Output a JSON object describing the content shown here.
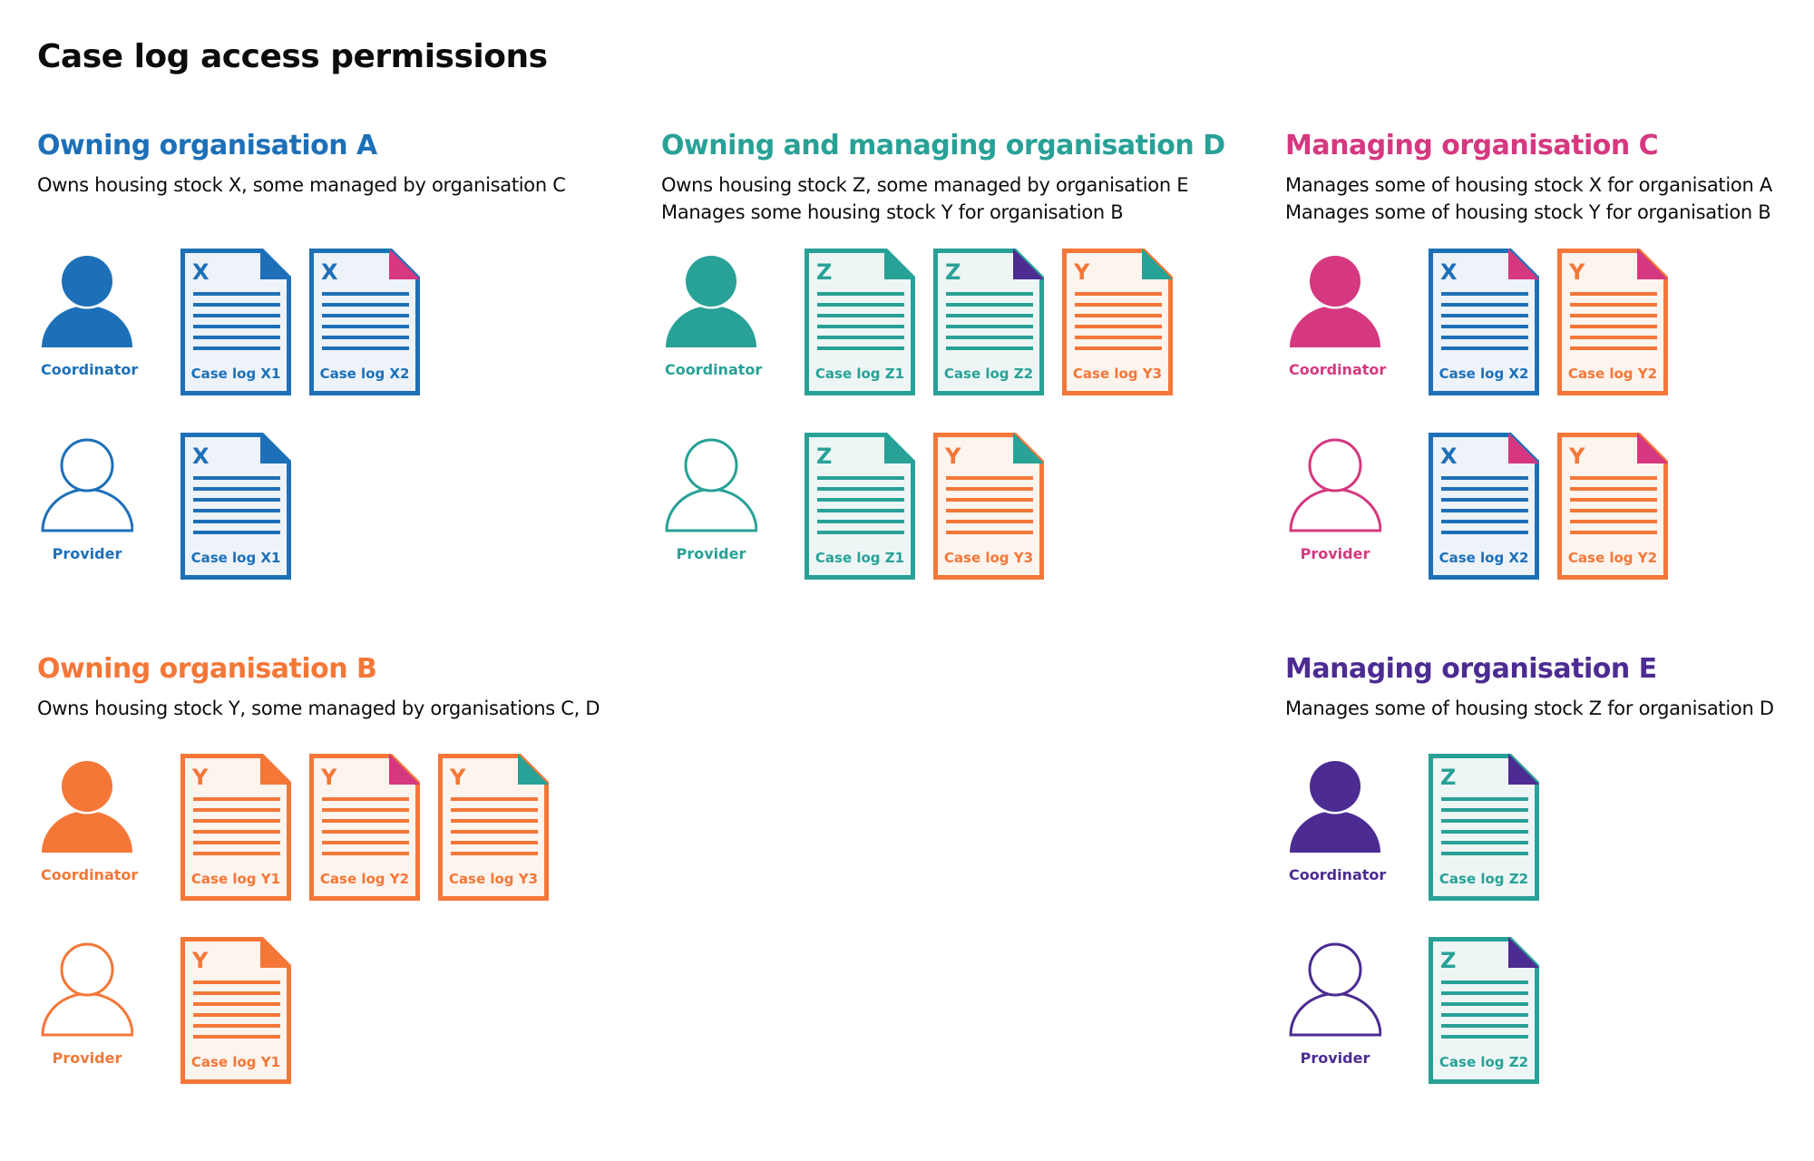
{
  "title": "Case log access permissions",
  "colors": {
    "A": "#1d70b8",
    "D": "#28a197",
    "C": "#d53880",
    "B": "#f47738",
    "E": "#4c2c92"
  },
  "sections": [
    {
      "id": "A",
      "position": "top",
      "heading": "Owning organisation A",
      "color": "#1d70b8",
      "description": [
        "Owns housing stock X, some managed by organisation C"
      ],
      "rows": [
        {
          "role": "Coordinator",
          "filled": true,
          "docs": [
            {
              "letter": "X",
              "label": "Case log X1",
              "color": "#1d70b8",
              "corner": "#1d70b8"
            },
            {
              "letter": "X",
              "label": "Case log X2",
              "color": "#1d70b8",
              "corner": "#d53880"
            }
          ]
        },
        {
          "role": "Provider",
          "filled": false,
          "docs": [
            {
              "letter": "X",
              "label": "Case log X1",
              "color": "#1d70b8",
              "corner": "#1d70b8"
            }
          ]
        }
      ]
    },
    {
      "id": "D",
      "position": "top",
      "heading": "Owning and managing organisation D",
      "color": "#28a197",
      "description": [
        "Owns housing stock Z, some managed by organisation E",
        "Manages some housing stock Y for organisation B"
      ],
      "rows": [
        {
          "role": "Coordinator",
          "filled": true,
          "docs": [
            {
              "letter": "Z",
              "label": "Case log Z1",
              "color": "#28a197",
              "corner": "#28a197"
            },
            {
              "letter": "Z",
              "label": "Case log Z2",
              "color": "#28a197",
              "corner": "#4c2c92"
            },
            {
              "letter": "Y",
              "label": "Case log Y3",
              "color": "#f47738",
              "corner": "#28a197"
            }
          ]
        },
        {
          "role": "Provider",
          "filled": false,
          "docs": [
            {
              "letter": "Z",
              "label": "Case log Z1",
              "color": "#28a197",
              "corner": "#28a197"
            },
            {
              "letter": "Y",
              "label": "Case log Y3",
              "color": "#f47738",
              "corner": "#28a197"
            }
          ]
        }
      ]
    },
    {
      "id": "C",
      "position": "top",
      "heading": "Managing organisation C",
      "color": "#d53880",
      "description": [
        "Manages some of housing stock X for organisation A",
        "Manages some of housing stock Y for organisation B"
      ],
      "rows": [
        {
          "role": "Coordinator",
          "filled": true,
          "docs": [
            {
              "letter": "X",
              "label": "Case log X2",
              "color": "#1d70b8",
              "corner": "#d53880"
            },
            {
              "letter": "Y",
              "label": "Case log Y2",
              "color": "#f47738",
              "corner": "#d53880"
            }
          ]
        },
        {
          "role": "Provider",
          "filled": false,
          "docs": [
            {
              "letter": "X",
              "label": "Case log X2",
              "color": "#1d70b8",
              "corner": "#d53880"
            },
            {
              "letter": "Y",
              "label": "Case log Y2",
              "color": "#f47738",
              "corner": "#d53880"
            }
          ]
        }
      ]
    },
    {
      "id": "B",
      "position": "bottom",
      "heading": "Owning organisation B",
      "color": "#f47738",
      "description": [
        "Owns housing stock Y, some managed by organisations C, D"
      ],
      "rows": [
        {
          "role": "Coordinator",
          "filled": true,
          "docs": [
            {
              "letter": "Y",
              "label": "Case log Y1",
              "color": "#f47738",
              "corner": "#f47738"
            },
            {
              "letter": "Y",
              "label": "Case log Y2",
              "color": "#f47738",
              "corner": "#d53880"
            },
            {
              "letter": "Y",
              "label": "Case log Y3",
              "color": "#f47738",
              "corner": "#28a197"
            }
          ]
        },
        {
          "role": "Provider",
          "filled": false,
          "docs": [
            {
              "letter": "Y",
              "label": "Case log Y1",
              "color": "#f47738",
              "corner": "#f47738"
            }
          ]
        }
      ]
    },
    {
      "id": "E",
      "position": "bottom",
      "heading": "Managing organisation E",
      "color": "#4c2c92",
      "description": [
        "Manages some of housing stock Z for organisation D"
      ],
      "rows": [
        {
          "role": "Coordinator",
          "filled": true,
          "docs": [
            {
              "letter": "Z",
              "label": "Case log Z2",
              "color": "#28a197",
              "corner": "#4c2c92"
            }
          ]
        },
        {
          "role": "Provider",
          "filled": false,
          "docs": [
            {
              "letter": "Z",
              "label": "Case log Z2",
              "color": "#28a197",
              "corner": "#4c2c92"
            }
          ]
        }
      ]
    }
  ]
}
